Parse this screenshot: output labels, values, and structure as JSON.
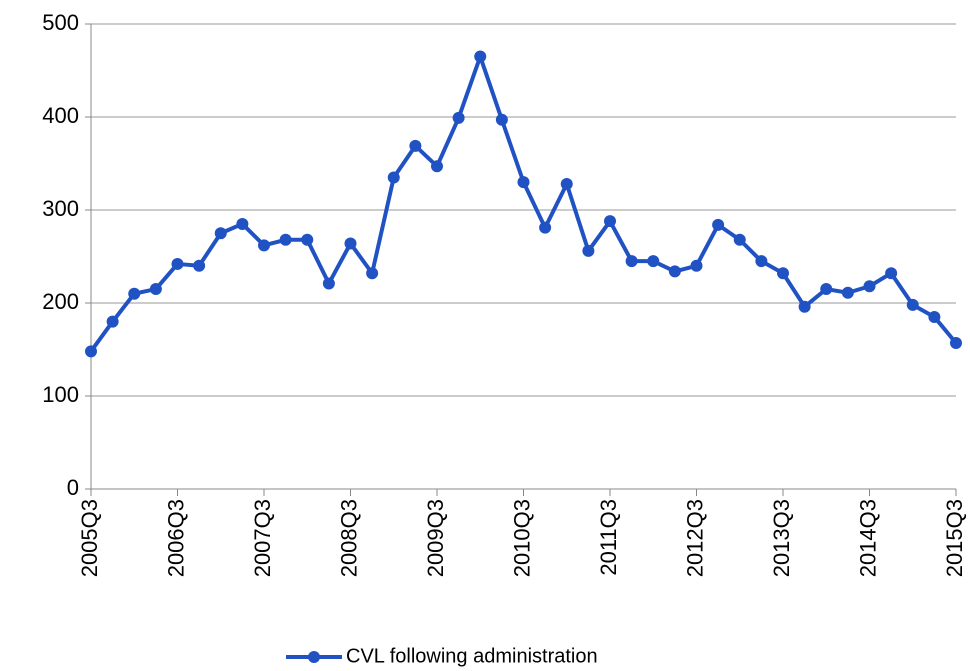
{
  "chart_data": {
    "type": "line",
    "categories": [
      "2005Q3",
      null,
      null,
      null,
      "2006Q3",
      null,
      null,
      null,
      "2007Q3",
      null,
      null,
      null,
      "2008Q3",
      null,
      null,
      null,
      "2009Q3",
      null,
      null,
      null,
      "2010Q3",
      null,
      null,
      null,
      "2011Q3",
      null,
      null,
      null,
      "2012Q3",
      null,
      null,
      null,
      "2013Q3",
      null,
      null,
      null,
      "2014Q3",
      null,
      null,
      null,
      "2015Q3"
    ],
    "series": [
      {
        "name": "CVL following administration",
        "color": "#2152c4",
        "values": [
          148,
          180,
          210,
          215,
          242,
          240,
          275,
          285,
          262,
          268,
          268,
          221,
          264,
          232,
          335,
          369,
          347,
          399,
          465,
          397,
          330,
          281,
          328,
          256,
          288,
          245,
          245,
          234,
          240,
          284,
          268,
          245,
          232,
          196,
          215,
          211,
          218,
          232,
          198,
          185,
          157
        ]
      }
    ],
    "ylim": [
      0,
      500
    ],
    "yticks": [
      0,
      100,
      200,
      300,
      400,
      500
    ],
    "grid": true,
    "legend": "bottom"
  }
}
